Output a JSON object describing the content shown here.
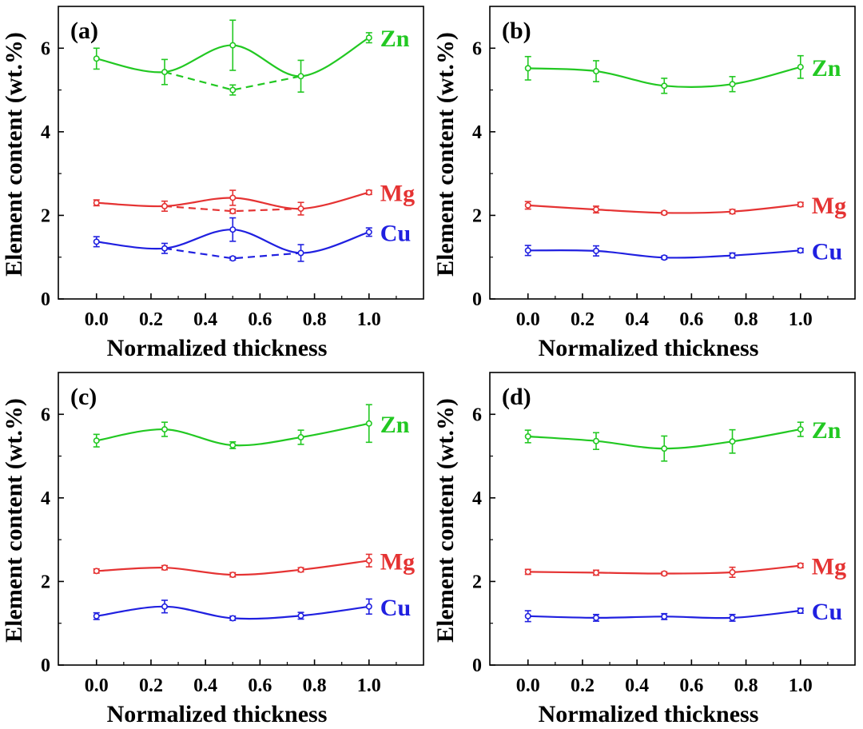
{
  "chart_data": [
    {
      "type": "line",
      "panel_label": "(a)",
      "xlabel": "Normalized thickness",
      "ylabel": "Element content (wt.%)",
      "xlim": [
        -0.14,
        1.2
      ],
      "ylim": [
        0,
        7
      ],
      "x_ticks": [
        "0.0",
        "0.2",
        "0.4",
        "0.6",
        "0.8",
        "1.0"
      ],
      "y_ticks": [
        "0",
        "2",
        "4",
        "6"
      ],
      "x": [
        0.0,
        0.25,
        0.5,
        0.75,
        1.0
      ],
      "series": [
        {
          "name": "Zn",
          "color": "#22c822",
          "values": [
            5.75,
            5.43,
            6.07,
            5.33,
            6.25
          ],
          "errors": [
            0.25,
            0.3,
            0.6,
            0.38,
            0.12
          ],
          "dashed": {
            "x": [
              0.25,
              0.5,
              0.75
            ],
            "values": [
              5.43,
              5.0,
              5.33
            ],
            "errors": [
              0,
              0.12,
              0
            ]
          }
        },
        {
          "name": "Mg",
          "color": "#e53333",
          "values": [
            2.3,
            2.22,
            2.42,
            2.16,
            2.55
          ],
          "errors": [
            0.07,
            0.12,
            0.18,
            0.15,
            0.05
          ],
          "dashed": {
            "x": [
              0.25,
              0.5,
              0.75
            ],
            "values": [
              2.22,
              2.1,
              2.16
            ],
            "errors": [
              0,
              0.05,
              0
            ]
          }
        },
        {
          "name": "Cu",
          "color": "#2020e0",
          "values": [
            1.37,
            1.21,
            1.66,
            1.1,
            1.6
          ],
          "errors": [
            0.12,
            0.12,
            0.28,
            0.2,
            0.1
          ],
          "dashed": {
            "x": [
              0.25,
              0.5,
              0.75
            ],
            "values": [
              1.21,
              0.97,
              1.1
            ],
            "errors": [
              0,
              0.04,
              0
            ]
          }
        }
      ]
    },
    {
      "type": "line",
      "panel_label": "(b)",
      "xlabel": "Normalized thickness",
      "ylabel": "Element content (wt.%)",
      "xlim": [
        -0.14,
        1.2
      ],
      "ylim": [
        0,
        7
      ],
      "x_ticks": [
        "0.0",
        "0.2",
        "0.4",
        "0.6",
        "0.8",
        "1.0"
      ],
      "y_ticks": [
        "0",
        "2",
        "4",
        "6"
      ],
      "x": [
        0.0,
        0.25,
        0.5,
        0.75,
        1.0
      ],
      "series": [
        {
          "name": "Zn",
          "color": "#22c822",
          "values": [
            5.52,
            5.45,
            5.1,
            5.14,
            5.55
          ],
          "errors": [
            0.28,
            0.25,
            0.18,
            0.18,
            0.27
          ]
        },
        {
          "name": "Mg",
          "color": "#e53333",
          "values": [
            2.24,
            2.14,
            2.06,
            2.09,
            2.26
          ],
          "errors": [
            0.09,
            0.08,
            0.04,
            0.05,
            0.05
          ]
        },
        {
          "name": "Cu",
          "color": "#2020e0",
          "values": [
            1.16,
            1.15,
            0.99,
            1.04,
            1.16
          ],
          "errors": [
            0.12,
            0.12,
            0.04,
            0.06,
            0.05
          ]
        }
      ]
    },
    {
      "type": "line",
      "panel_label": "(c)",
      "xlabel": "Normalized thickness",
      "ylabel": "Element content (wt.%)",
      "xlim": [
        -0.14,
        1.2
      ],
      "ylim": [
        0,
        7
      ],
      "x_ticks": [
        "0.0",
        "0.2",
        "0.4",
        "0.6",
        "0.8",
        "1.0"
      ],
      "y_ticks": [
        "0",
        "2",
        "4",
        "6"
      ],
      "x": [
        0.0,
        0.25,
        0.5,
        0.75,
        1.0
      ],
      "series": [
        {
          "name": "Zn",
          "color": "#22c822",
          "values": [
            5.37,
            5.64,
            5.26,
            5.45,
            5.78
          ],
          "errors": [
            0.15,
            0.17,
            0.08,
            0.17,
            0.45
          ]
        },
        {
          "name": "Mg",
          "color": "#e53333",
          "values": [
            2.25,
            2.33,
            2.16,
            2.28,
            2.5
          ],
          "errors": [
            0.05,
            0.05,
            0.05,
            0.05,
            0.15
          ]
        },
        {
          "name": "Cu",
          "color": "#2020e0",
          "values": [
            1.17,
            1.4,
            1.12,
            1.18,
            1.4
          ],
          "errors": [
            0.08,
            0.15,
            0.05,
            0.08,
            0.18
          ]
        }
      ]
    },
    {
      "type": "line",
      "panel_label": "(d)",
      "xlabel": "Normalized thickness",
      "ylabel": "Element content (wt.%)",
      "xlim": [
        -0.14,
        1.2
      ],
      "ylim": [
        0,
        7
      ],
      "x_ticks": [
        "0.0",
        "0.2",
        "0.4",
        "0.6",
        "0.8",
        "1.0"
      ],
      "y_ticks": [
        "0",
        "2",
        "4",
        "6"
      ],
      "x": [
        0.0,
        0.25,
        0.5,
        0.75,
        1.0
      ],
      "series": [
        {
          "name": "Zn",
          "color": "#22c822",
          "values": [
            5.47,
            5.36,
            5.18,
            5.35,
            5.64
          ],
          "errors": [
            0.15,
            0.2,
            0.3,
            0.28,
            0.17
          ]
        },
        {
          "name": "Mg",
          "color": "#e53333",
          "values": [
            2.23,
            2.21,
            2.19,
            2.22,
            2.38
          ],
          "errors": [
            0.06,
            0.06,
            0.04,
            0.12,
            0.05
          ]
        },
        {
          "name": "Cu",
          "color": "#2020e0",
          "values": [
            1.17,
            1.13,
            1.16,
            1.13,
            1.3
          ],
          "errors": [
            0.13,
            0.08,
            0.07,
            0.08,
            0.06
          ]
        }
      ]
    }
  ]
}
